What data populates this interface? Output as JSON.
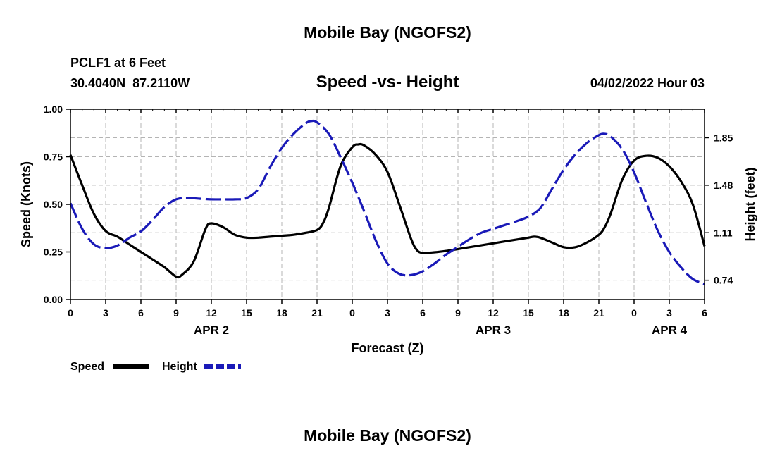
{
  "chart_data": {
    "type": "line",
    "title": "Mobile Bay (NGOFS2)",
    "subtitle": "Speed -vs- Height",
    "station": "PCLF1 at 6 Feet",
    "location": "30.4040N  87.2110W",
    "datetime": "04/02/2022 Hour 03",
    "xlabel": "Forecast (Z)",
    "ylabel": "Speed (Knots)",
    "y2label": "Height (feet)",
    "x_hours_range": [
      0,
      54
    ],
    "ylim": [
      0,
      1.0
    ],
    "y2lim": [
      0.59,
      2.072
    ],
    "x_ticks": [
      {
        "h": 0,
        "label": "0"
      },
      {
        "h": 3,
        "label": "3"
      },
      {
        "h": 6,
        "label": "6"
      },
      {
        "h": 9,
        "label": "9"
      },
      {
        "h": 12,
        "label": "12"
      },
      {
        "h": 15,
        "label": "15"
      },
      {
        "h": 18,
        "label": "18"
      },
      {
        "h": 21,
        "label": "21"
      },
      {
        "h": 24,
        "label": "0"
      },
      {
        "h": 27,
        "label": "3"
      },
      {
        "h": 30,
        "label": "6"
      },
      {
        "h": 33,
        "label": "9"
      },
      {
        "h": 36,
        "label": "12"
      },
      {
        "h": 39,
        "label": "15"
      },
      {
        "h": 42,
        "label": "18"
      },
      {
        "h": 45,
        "label": "21"
      },
      {
        "h": 48,
        "label": "0"
      },
      {
        "h": 51,
        "label": "3"
      },
      {
        "h": 54,
        "label": "6"
      }
    ],
    "date_labels": [
      {
        "h": 12,
        "label": "APR 2"
      },
      {
        "h": 36,
        "label": "APR 3"
      },
      {
        "h": 51,
        "label": "APR 4"
      }
    ],
    "y_ticks": [
      {
        "v": 0.0,
        "label": "0.00"
      },
      {
        "v": 0.25,
        "label": "0.25"
      },
      {
        "v": 0.5,
        "label": "0.50"
      },
      {
        "v": 0.75,
        "label": "0.75"
      },
      {
        "v": 1.0,
        "label": "1.00"
      }
    ],
    "y2_ticks": [
      {
        "v": 0.74,
        "label": "0.74"
      },
      {
        "v": 1.11,
        "label": "1.11"
      },
      {
        "v": 1.48,
        "label": "1.48"
      },
      {
        "v": 1.85,
        "label": "1.85"
      }
    ],
    "grid": true,
    "legend_position": "bottom-left",
    "series": [
      {
        "name": "Speed",
        "axis": "left",
        "color": "#000000",
        "dash": "solid",
        "points": [
          [
            0,
            0.76
          ],
          [
            1,
            0.6
          ],
          [
            2,
            0.45
          ],
          [
            3,
            0.36
          ],
          [
            4,
            0.33
          ],
          [
            5,
            0.29
          ],
          [
            6,
            0.25
          ],
          [
            7,
            0.21
          ],
          [
            8,
            0.17
          ],
          [
            9,
            0.12
          ],
          [
            9.5,
            0.13
          ],
          [
            10.5,
            0.2
          ],
          [
            11.5,
            0.37
          ],
          [
            12,
            0.4
          ],
          [
            13,
            0.38
          ],
          [
            14,
            0.34
          ],
          [
            15,
            0.325
          ],
          [
            16,
            0.325
          ],
          [
            17,
            0.33
          ],
          [
            18,
            0.335
          ],
          [
            19,
            0.34
          ],
          [
            20,
            0.35
          ],
          [
            21,
            0.365
          ],
          [
            21.5,
            0.4
          ],
          [
            22,
            0.48
          ],
          [
            23,
            0.7
          ],
          [
            24,
            0.8
          ],
          [
            24.5,
            0.815
          ],
          [
            25,
            0.81
          ],
          [
            26,
            0.76
          ],
          [
            27,
            0.67
          ],
          [
            28,
            0.5
          ],
          [
            29,
            0.32
          ],
          [
            29.5,
            0.26
          ],
          [
            30,
            0.245
          ],
          [
            31,
            0.248
          ],
          [
            32,
            0.255
          ],
          [
            33,
            0.265
          ],
          [
            35,
            0.285
          ],
          [
            37,
            0.305
          ],
          [
            39,
            0.325
          ],
          [
            39.5,
            0.33
          ],
          [
            40,
            0.325
          ],
          [
            41,
            0.3
          ],
          [
            42,
            0.275
          ],
          [
            43,
            0.275
          ],
          [
            44,
            0.3
          ],
          [
            45,
            0.34
          ],
          [
            45.5,
            0.38
          ],
          [
            46,
            0.45
          ],
          [
            47,
            0.63
          ],
          [
            48,
            0.73
          ],
          [
            49,
            0.755
          ],
          [
            50,
            0.745
          ],
          [
            51,
            0.7
          ],
          [
            52,
            0.62
          ],
          [
            53,
            0.5
          ],
          [
            54,
            0.28
          ]
        ]
      },
      {
        "name": "Height",
        "axis": "right",
        "color": "#1a1ab8",
        "dash": "dashed",
        "points": [
          [
            0,
            1.34
          ],
          [
            1,
            1.14
          ],
          [
            2,
            1.02
          ],
          [
            3,
            0.99
          ],
          [
            4,
            1.01
          ],
          [
            5,
            1.07
          ],
          [
            6,
            1.12
          ],
          [
            7,
            1.21
          ],
          [
            8,
            1.31
          ],
          [
            9,
            1.37
          ],
          [
            10,
            1.38
          ],
          [
            11,
            1.375
          ],
          [
            12,
            1.37
          ],
          [
            13,
            1.37
          ],
          [
            14,
            1.37
          ],
          [
            15,
            1.38
          ],
          [
            16,
            1.45
          ],
          [
            17,
            1.62
          ],
          [
            18,
            1.77
          ],
          [
            19,
            1.88
          ],
          [
            20,
            1.96
          ],
          [
            20.5,
            1.98
          ],
          [
            21,
            1.97
          ],
          [
            22,
            1.88
          ],
          [
            23,
            1.7
          ],
          [
            24,
            1.5
          ],
          [
            25,
            1.28
          ],
          [
            26,
            1.05
          ],
          [
            27,
            0.87
          ],
          [
            28,
            0.79
          ],
          [
            29,
            0.78
          ],
          [
            30,
            0.81
          ],
          [
            31,
            0.87
          ],
          [
            32,
            0.94
          ],
          [
            33,
            1.0
          ],
          [
            34,
            1.06
          ],
          [
            35,
            1.11
          ],
          [
            36,
            1.14
          ],
          [
            37,
            1.17
          ],
          [
            38,
            1.2
          ],
          [
            39,
            1.235
          ],
          [
            40,
            1.3
          ],
          [
            41,
            1.45
          ],
          [
            42,
            1.6
          ],
          [
            43,
            1.72
          ],
          [
            44,
            1.81
          ],
          [
            45,
            1.87
          ],
          [
            45.5,
            1.88
          ],
          [
            46,
            1.86
          ],
          [
            47,
            1.76
          ],
          [
            48,
            1.58
          ],
          [
            49,
            1.35
          ],
          [
            50,
            1.13
          ],
          [
            51,
            0.96
          ],
          [
            52,
            0.84
          ],
          [
            53,
            0.75
          ],
          [
            54,
            0.71
          ]
        ]
      }
    ],
    "legend": [
      {
        "label": "Speed",
        "color": "#000000",
        "dash": "solid"
      },
      {
        "label": "Height",
        "color": "#1a1ab8",
        "dash": "dashed"
      }
    ],
    "footer_title": "Mobile Bay (NGOFS2)"
  }
}
